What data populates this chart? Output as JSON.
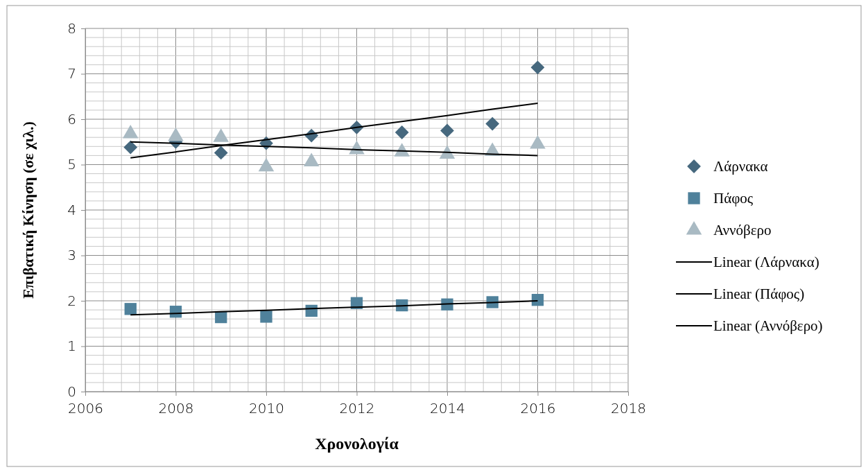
{
  "chart_data": {
    "type": "scatter",
    "xlabel": "Χρονολογία",
    "ylabel": "Επιβατική Κίνηση (σε χιλ.)",
    "x": [
      2007,
      2008,
      2009,
      2010,
      2011,
      2012,
      2013,
      2014,
      2015,
      2016
    ],
    "xlim": [
      2006,
      2018
    ],
    "xticks": [
      2006,
      2008,
      2010,
      2012,
      2014,
      2016,
      2018
    ],
    "ylim": [
      0,
      8
    ],
    "yticks": [
      0,
      1,
      2,
      3,
      4,
      5,
      6,
      7,
      8
    ],
    "grid": true,
    "legend": "right",
    "series": [
      {
        "name": "Λάρνακα",
        "color": "#46687e",
        "marker": "diamond",
        "values": [
          5.38,
          5.5,
          5.26,
          5.47,
          5.64,
          5.82,
          5.71,
          5.75,
          5.9,
          7.14
        ]
      },
      {
        "name": "Πάφος",
        "color": "#4f819b",
        "marker": "square",
        "values": [
          1.82,
          1.76,
          1.64,
          1.65,
          1.78,
          1.95,
          1.9,
          1.92,
          1.97,
          2.02
        ]
      },
      {
        "name": "Αννόβερο",
        "color": "#a9bac3",
        "marker": "triangle",
        "values": [
          5.68,
          5.62,
          5.6,
          4.95,
          5.06,
          5.33,
          5.28,
          5.23,
          5.29,
          5.45
        ]
      },
      {
        "name": "Linear (Λάρνακα)",
        "type": "line",
        "color": "#000000",
        "marker": "none",
        "values": [
          5.15,
          5.28,
          5.42,
          5.55,
          5.68,
          5.82,
          5.95,
          6.08,
          6.22,
          6.35
        ]
      },
      {
        "name": "Linear (Πάφος)",
        "type": "line",
        "color": "#000000",
        "marker": "none",
        "values": [
          1.69,
          1.72,
          1.76,
          1.79,
          1.83,
          1.86,
          1.89,
          1.93,
          1.96,
          2.0
        ]
      },
      {
        "name": "Linear (Αννόβερο)",
        "type": "line",
        "color": "#000000",
        "marker": "none",
        "values": [
          5.5,
          5.47,
          5.43,
          5.4,
          5.37,
          5.33,
          5.3,
          5.27,
          5.23,
          5.2
        ]
      }
    ]
  }
}
